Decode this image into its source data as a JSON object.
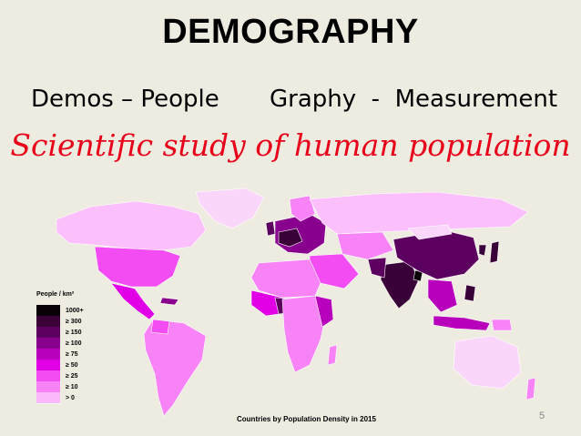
{
  "slide": {
    "title": "DEMOGRAPHY",
    "subtitle_left": "Demos – People",
    "subtitle_right": "Graphy  -  Measurement",
    "tagline": "Scientific study of human population",
    "page_number": "5"
  },
  "map": {
    "caption": "Countries by Population Density in 2015",
    "legend_title": "People / km²",
    "legend": [
      {
        "label": "1000+",
        "color": "#0a0008"
      },
      {
        "label": "≥ 300",
        "color": "#3a0038"
      },
      {
        "label": "≥ 150",
        "color": "#5c0060"
      },
      {
        "label": "≥ 100",
        "color": "#8a008e"
      },
      {
        "label": "≥ 75",
        "color": "#b800bc"
      },
      {
        "label": "≥ 50",
        "color": "#e100e6"
      },
      {
        "label": "≥ 25",
        "color": "#f34cf3"
      },
      {
        "label": "≥ 10",
        "color": "#f783f7"
      },
      {
        "label": "> 0",
        "color": "#fbb8fb"
      }
    ]
  }
}
